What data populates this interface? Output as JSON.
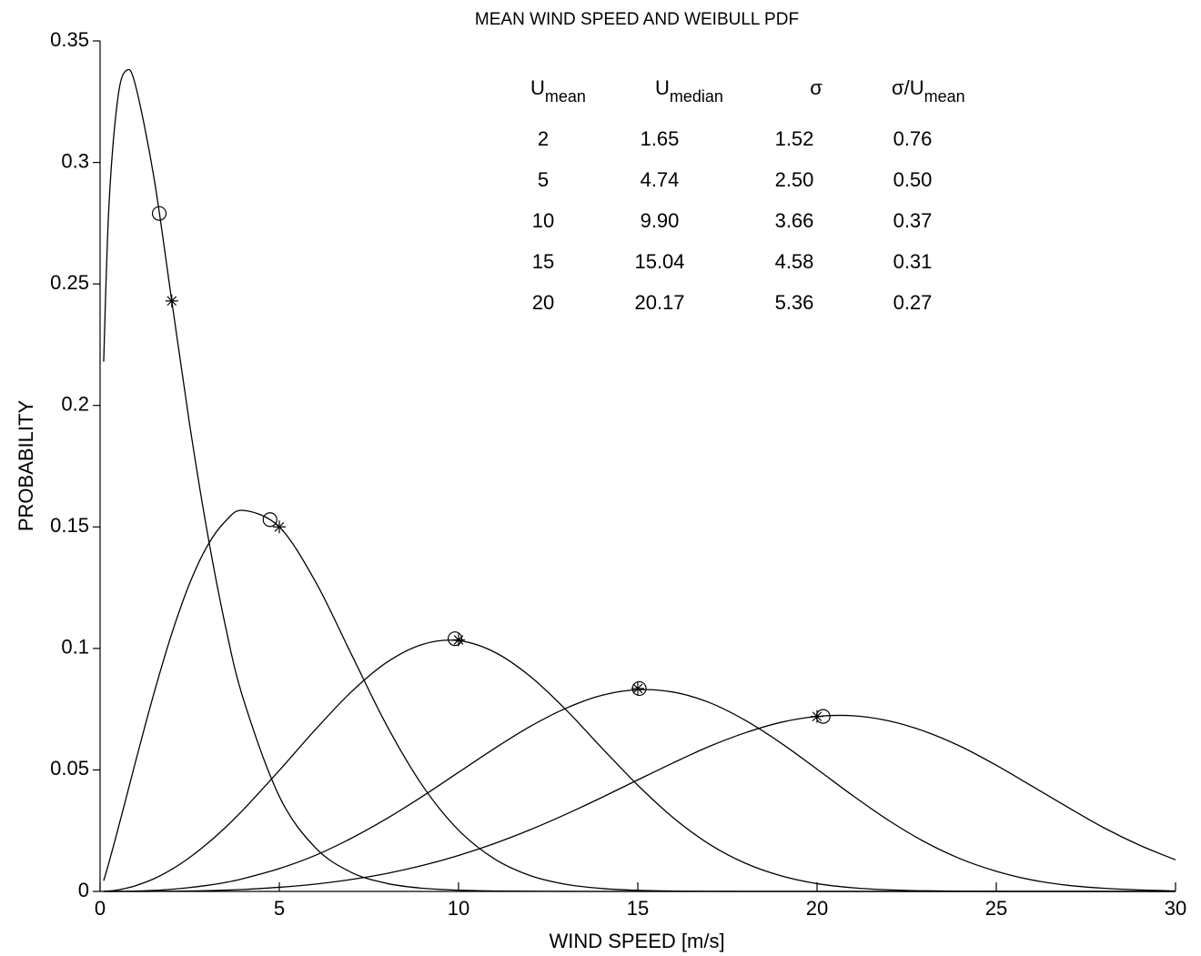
{
  "chart_data": {
    "type": "line",
    "title": "MEAN WIND SPEED AND WEIBULL PDF",
    "xlabel": "WIND SPEED [m/s]",
    "ylabel": "PROBABILITY",
    "xlim": [
      0,
      30
    ],
    "ylim": [
      0,
      0.35
    ],
    "xticks": [
      0,
      5,
      10,
      15,
      20,
      25,
      30
    ],
    "yticks": [
      0,
      0.05,
      0.1,
      0.15,
      0.2,
      0.25,
      0.3,
      0.35
    ],
    "grid": false,
    "x": [
      0.1,
      0.25,
      0.5,
      0.75,
      1,
      1.5,
      2,
      2.5,
      3,
      3.5,
      4,
      5,
      6,
      7,
      8,
      9,
      10,
      11,
      12,
      13,
      14,
      15,
      16,
      17,
      18,
      19,
      20,
      21,
      22,
      23,
      24,
      25,
      26,
      27,
      28,
      29,
      30
    ],
    "series": [
      {
        "color": "#000000",
        "values": [
          0.218,
          0.283,
          0.327,
          0.338,
          0.331,
          0.294,
          0.243,
          0.192,
          0.147,
          0.109,
          0.079,
          0.0391,
          0.0181,
          0.0079,
          0.0033,
          0.0013,
          0.0005,
          0.0002,
          7e-05,
          2e-05,
          0,
          0,
          0,
          0,
          0,
          0,
          0,
          0,
          0,
          0,
          0,
          0,
          0,
          0,
          0,
          0,
          0
        ]
      },
      {
        "color": "#000000",
        "values": [
          0.0044,
          0.012,
          0.0257,
          0.0398,
          0.054,
          0.0814,
          0.1061,
          0.1268,
          0.1424,
          0.1524,
          0.1568,
          0.15,
          0.1277,
          0.0979,
          0.0682,
          0.0434,
          0.0252,
          0.0134,
          0.0065,
          0.0029,
          0.0012,
          0.00045,
          0.00015,
          5e-05,
          0,
          0,
          0,
          0,
          0,
          0,
          0,
          0,
          0,
          0,
          0,
          0,
          0
        ]
      },
      {
        "color": "#000000",
        "values": [
          3e-05,
          0.00016,
          0.0006,
          0.0014,
          0.0024,
          0.0052,
          0.0091,
          0.014,
          0.0198,
          0.0264,
          0.0337,
          0.0498,
          0.0665,
          0.082,
          0.0943,
          0.1017,
          0.1032,
          0.0985,
          0.0885,
          0.0747,
          0.059,
          0.0437,
          0.0302,
          0.0194,
          0.0116,
          0.0064,
          0.0032,
          0.0015,
          0.00065,
          0.00025,
          9e-05,
          3e-05,
          0,
          0,
          0,
          0,
          0
        ]
      },
      {
        "color": "#000000",
        "values": [
          0,
          4e-06,
          2e-05,
          7e-05,
          0.00014,
          0.0004,
          0.0009,
          0.0016,
          0.0025,
          0.0037,
          0.0053,
          0.0094,
          0.0148,
          0.0218,
          0.03,
          0.0392,
          0.049,
          0.0588,
          0.0679,
          0.0754,
          0.0807,
          0.083,
          0.082,
          0.0777,
          0.0704,
          0.061,
          0.0503,
          0.0394,
          0.0292,
          0.0204,
          0.0134,
          0.0083,
          0.0047,
          0.0025,
          0.0013,
          0.0006,
          0.0002
        ]
      },
      {
        "color": "#000000",
        "values": [
          0,
          0,
          1e-06,
          4e-06,
          1e-05,
          4e-05,
          9e-05,
          0.00018,
          0.00033,
          0.00053,
          0.0008,
          0.0017,
          0.003,
          0.0049,
          0.0074,
          0.0107,
          0.0148,
          0.0197,
          0.0254,
          0.0318,
          0.0387,
          0.0459,
          0.053,
          0.0597,
          0.0653,
          0.0696,
          0.072,
          0.0723,
          0.0702,
          0.0659,
          0.0597,
          0.0519,
          0.0433,
          0.0346,
          0.0262,
          0.019,
          0.013
        ]
      }
    ],
    "median_points": {
      "marker": "circle",
      "color": "#000000",
      "x": [
        1.65,
        4.74,
        9.9,
        15.04,
        20.17
      ],
      "values": [
        0.279,
        0.153,
        0.104,
        0.0835,
        0.072
      ]
    },
    "mean_points": {
      "marker": "star",
      "color": "#000000",
      "x": [
        2,
        5,
        10,
        15,
        20
      ],
      "values": [
        0.243,
        0.15,
        0.1035,
        0.0835,
        0.072
      ]
    },
    "table": {
      "header": [
        {
          "main": "U",
          "sub": "mean"
        },
        {
          "main": "U",
          "sub": "median"
        },
        {
          "main": "σ"
        },
        {
          "main": "σ/U",
          "sub": "mean"
        }
      ],
      "rows": [
        [
          "2",
          "1.65",
          "1.52",
          "0.76"
        ],
        [
          "5",
          "4.74",
          "2.50",
          "0.50"
        ],
        [
          "10",
          "9.90",
          "3.66",
          "0.37"
        ],
        [
          "15",
          "15.04",
          "4.58",
          "0.31"
        ],
        [
          "20",
          "20.17",
          "5.36",
          "0.27"
        ]
      ]
    }
  }
}
